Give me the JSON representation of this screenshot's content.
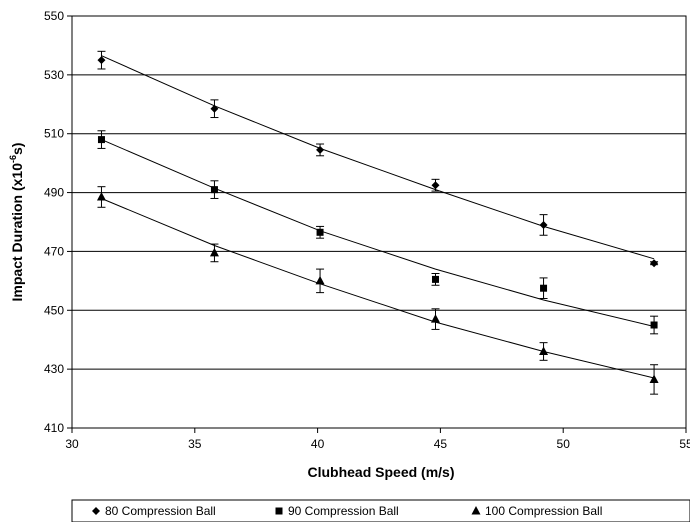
{
  "chart_data": {
    "type": "scatter",
    "xlabel": "Clubhead Speed (m/s)",
    "ylabel_main": "Impact Duration (x10",
    "ylabel_sup": "-6",
    "ylabel_end": "s)",
    "xlim": [
      30,
      55
    ],
    "ylim": [
      410,
      550
    ],
    "x_ticks": [
      "30",
      "35",
      "40",
      "45",
      "50",
      "55"
    ],
    "y_ticks": [
      "410",
      "430",
      "450",
      "470",
      "490",
      "510",
      "530",
      "550"
    ],
    "grid": "horizontal",
    "legend_position": "bottom",
    "series": [
      {
        "name": "80 Compression Ball",
        "marker": "diamond",
        "points": [
          {
            "x": 31.2,
            "y": 535,
            "err": 3
          },
          {
            "x": 35.8,
            "y": 518.5,
            "err": 3
          },
          {
            "x": 40.1,
            "y": 504.5,
            "err": 2
          },
          {
            "x": 44.8,
            "y": 492.5,
            "err": 2
          },
          {
            "x": 49.2,
            "y": 479,
            "err": 3.5
          },
          {
            "x": 53.7,
            "y": 466,
            "err": 0.5
          }
        ],
        "trend": [
          [
            31.2,
            536.5
          ],
          [
            35.8,
            519.5
          ],
          [
            40.1,
            505
          ],
          [
            44.8,
            491
          ],
          [
            49.2,
            478.5
          ],
          [
            53.7,
            467.5
          ]
        ]
      },
      {
        "name": "90 Compression Ball",
        "marker": "square",
        "points": [
          {
            "x": 31.2,
            "y": 508,
            "err": 3
          },
          {
            "x": 35.8,
            "y": 491,
            "err": 3
          },
          {
            "x": 40.1,
            "y": 476.5,
            "err": 2
          },
          {
            "x": 44.8,
            "y": 460.5,
            "err": 2
          },
          {
            "x": 49.2,
            "y": 457.5,
            "err": 3.5
          },
          {
            "x": 53.7,
            "y": 445,
            "err": 3
          }
        ],
        "trend": [
          [
            31.2,
            508
          ],
          [
            35.8,
            491.5
          ],
          [
            40.1,
            477
          ],
          [
            44.8,
            464
          ],
          [
            49.2,
            453.5
          ],
          [
            53.7,
            444.5
          ]
        ]
      },
      {
        "name": "100 Compression Ball",
        "marker": "triangle",
        "points": [
          {
            "x": 31.2,
            "y": 488.5,
            "err": 3.5
          },
          {
            "x": 35.8,
            "y": 469.5,
            "err": 3
          },
          {
            "x": 40.1,
            "y": 460,
            "err": 4
          },
          {
            "x": 44.8,
            "y": 447,
            "err": 3.5
          },
          {
            "x": 49.2,
            "y": 436,
            "err": 3
          },
          {
            "x": 53.7,
            "y": 426.5,
            "err": 5
          }
        ],
        "trend": [
          [
            31.2,
            488
          ],
          [
            35.8,
            472
          ],
          [
            40.1,
            459
          ],
          [
            44.8,
            446
          ],
          [
            49.2,
            436
          ],
          [
            53.7,
            427
          ]
        ]
      }
    ]
  }
}
